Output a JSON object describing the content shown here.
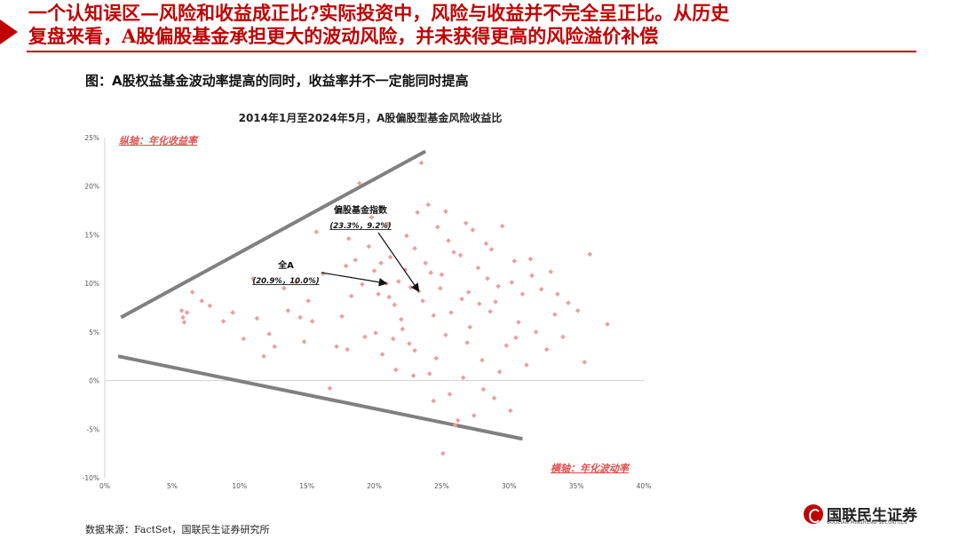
{
  "header": {
    "line1": "一个认知误区—风险和收益成正比?实际投资中，风险与收益并不完全呈正比。从历史",
    "line2": "复盘来看，A股偏股基金承担更大的波动风险，并未获得更高的风险溢价补偿"
  },
  "subtitle": "图：A股权益基金波动率提高的同时，收益率并不一定能同时提高",
  "source": "数据来源：FactSet，国联民生证券研究所",
  "logo": {
    "cn": "国联民生证券",
    "en": "GUOLIAN MINSHENG SECURITIES"
  },
  "colors": {
    "accent": "#c00000",
    "points": "#e8a0a0",
    "trend_lines": "#808080"
  },
  "chart_data": {
    "type": "scatter",
    "title": "2014年1月至2024年5月，A股偏股型基金风险收益比",
    "xlabel": "横轴：年化波动率",
    "ylabel": "纵轴：年化收益率",
    "xlim": [
      0,
      40
    ],
    "ylim": [
      -10,
      25
    ],
    "x_ticks": [
      "0%",
      "5%",
      "10%",
      "15%",
      "20%",
      "25%",
      "30%",
      "35%",
      "40%"
    ],
    "y_ticks": [
      "25%",
      "20%",
      "15%",
      "10%",
      "5%",
      "0%",
      "-5%",
      "-10%"
    ],
    "grid": false,
    "annotations": [
      {
        "label": "偏股基金指数",
        "value_text": "(23.3%，9.2%)",
        "x": 23.3,
        "y": 9.2
      },
      {
        "label": "全A",
        "value_text": "(20.9%，10.0%)",
        "x": 20.9,
        "y": 10.0
      }
    ],
    "trend_lines": [
      {
        "name": "upper",
        "x": [
          1.2,
          23.8
        ],
        "y": [
          6.5,
          23.6
        ]
      },
      {
        "name": "lower",
        "x": [
          1.0,
          31.0
        ],
        "y": [
          2.5,
          -6.0
        ]
      }
    ],
    "points": [
      [
        5.7,
        7.2
      ],
      [
        5.8,
        6.5
      ],
      [
        5.9,
        6.0
      ],
      [
        6.1,
        7.0
      ],
      [
        6.5,
        9.1
      ],
      [
        7.2,
        8.2
      ],
      [
        7.8,
        7.7
      ],
      [
        8.8,
        6.1
      ],
      [
        9.5,
        7.0
      ],
      [
        10.3,
        4.3
      ],
      [
        11.0,
        10.5
      ],
      [
        11.3,
        6.4
      ],
      [
        11.8,
        2.5
      ],
      [
        12.2,
        4.8
      ],
      [
        12.6,
        3.5
      ],
      [
        13.3,
        9.5
      ],
      [
        13.6,
        7.2
      ],
      [
        14.2,
        10.1
      ],
      [
        14.5,
        6.5
      ],
      [
        14.8,
        4.0
      ],
      [
        15.1,
        8.2
      ],
      [
        15.4,
        6.1
      ],
      [
        15.7,
        15.3
      ],
      [
        16.2,
        11.0
      ],
      [
        16.7,
        -0.8
      ],
      [
        17.2,
        3.5
      ],
      [
        17.6,
        6.6
      ],
      [
        18.0,
        3.2
      ],
      [
        18.3,
        8.7
      ],
      [
        18.6,
        12.4
      ],
      [
        18.9,
        20.3
      ],
      [
        19.3,
        4.5
      ],
      [
        19.6,
        13.8
      ],
      [
        20.0,
        11.3
      ],
      [
        20.3,
        8.9
      ],
      [
        20.6,
        2.7
      ],
      [
        21.0,
        16.1
      ],
      [
        21.2,
        12.7
      ],
      [
        21.5,
        7.8
      ],
      [
        21.8,
        10.2
      ],
      [
        22.1,
        5.3
      ],
      [
        22.4,
        14.9
      ],
      [
        22.7,
        9.6
      ],
      [
        23.0,
        3.1
      ],
      [
        23.2,
        17.3
      ],
      [
        23.5,
        22.4
      ],
      [
        23.8,
        12.1
      ],
      [
        24.1,
        0.7
      ],
      [
        24.4,
        6.7
      ],
      [
        24.7,
        15.8
      ],
      [
        25.0,
        10.9
      ],
      [
        25.3,
        4.7
      ],
      [
        25.6,
        -1.4
      ],
      [
        25.9,
        13.2
      ],
      [
        26.2,
        -4.1
      ],
      [
        26.5,
        8.4
      ],
      [
        26.8,
        16.2
      ],
      [
        27.1,
        5.5
      ],
      [
        27.4,
        -3.6
      ],
      [
        27.7,
        11.6
      ],
      [
        28.0,
        2.1
      ],
      [
        28.3,
        14.1
      ],
      [
        28.6,
        7.1
      ],
      [
        28.9,
        -1.8
      ],
      [
        29.2,
        9.7
      ],
      [
        29.5,
        15.9
      ],
      [
        29.8,
        3.6
      ],
      [
        30.1,
        -3.1
      ],
      [
        30.4,
        12.3
      ],
      [
        30.7,
        6.0
      ],
      [
        31.0,
        8.9
      ],
      [
        31.3,
        1.6
      ],
      [
        31.6,
        12.5
      ],
      [
        32.0,
        5.0
      ],
      [
        32.4,
        9.4
      ],
      [
        32.8,
        3.2
      ],
      [
        33.1,
        11.2
      ],
      [
        33.4,
        6.8
      ],
      [
        34.0,
        4.5
      ],
      [
        34.4,
        8.0
      ],
      [
        35.1,
        7.2
      ],
      [
        35.6,
        1.9
      ],
      [
        36.0,
        13.0
      ],
      [
        37.3,
        5.8
      ],
      [
        25.1,
        -7.5
      ],
      [
        26.0,
        -4.6
      ],
      [
        24.6,
        2.3
      ],
      [
        22.9,
        0.5
      ],
      [
        21.6,
        1.1
      ],
      [
        20.1,
        4.9
      ],
      [
        19.1,
        9.9
      ],
      [
        17.9,
        11.8
      ],
      [
        27.8,
        7.9
      ],
      [
        28.4,
        10.5
      ],
      [
        26.4,
        12.9
      ],
      [
        23.6,
        8.2
      ],
      [
        24.9,
        9.5
      ],
      [
        22.3,
        11.4
      ],
      [
        21.1,
        8.6
      ],
      [
        25.7,
        7.0
      ],
      [
        27.0,
        9.1
      ],
      [
        29.0,
        8.1
      ],
      [
        30.2,
        10.1
      ],
      [
        24.2,
        11.1
      ],
      [
        23.0,
        13.6
      ],
      [
        25.5,
        14.4
      ],
      [
        26.9,
        3.9
      ],
      [
        22.0,
        6.3
      ],
      [
        20.5,
        12.1
      ],
      [
        18.1,
        14.6
      ],
      [
        19.8,
        16.8
      ],
      [
        24.0,
        18.1
      ],
      [
        25.3,
        17.4
      ],
      [
        27.3,
        15.5
      ],
      [
        28.7,
        13.5
      ],
      [
        31.7,
        10.8
      ],
      [
        33.6,
        8.9
      ],
      [
        30.5,
        4.4
      ],
      [
        29.3,
        0.9
      ],
      [
        28.1,
        -0.9
      ],
      [
        26.6,
        0.3
      ],
      [
        24.4,
        -2.1
      ],
      [
        22.6,
        3.8
      ],
      [
        21.4,
        4.3
      ],
      [
        23.3,
        9.2
      ],
      [
        20.9,
        10.0
      ]
    ]
  }
}
